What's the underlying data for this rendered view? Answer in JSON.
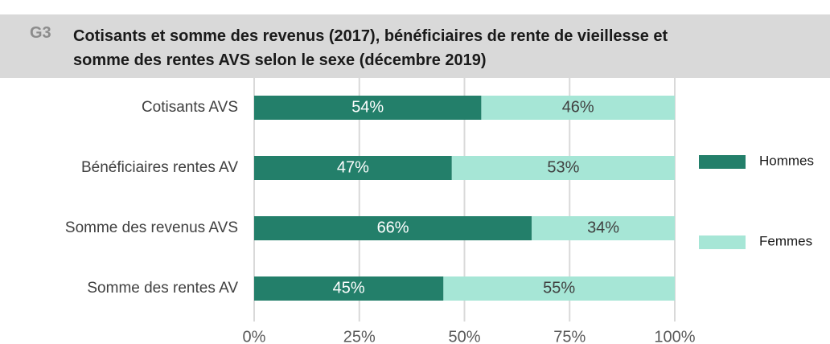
{
  "chart_data": {
    "type": "stacked_barh",
    "label": "G3",
    "title": [
      "Cotisants et somme des revenus (2017), bénéficiaires de rente de vieillesse et",
      "somme des rentes AVS selon le sexe (décembre 2019)"
    ],
    "categories": [
      "Cotisants AVS",
      "Bénéficiaires rentes AV",
      "Somme des revenus AVS",
      "Somme des rentes AV"
    ],
    "series": [
      {
        "name": "Hommes",
        "color": "#237f6a",
        "values": [
          54,
          47,
          66,
          45
        ],
        "value_labels": [
          "54%",
          "47%",
          "66%",
          "45%"
        ]
      },
      {
        "name": "Femmes",
        "color": "#a6e6d6",
        "values": [
          46,
          53,
          34,
          55
        ],
        "value_labels": [
          "46%",
          "53%",
          "34%",
          "55%"
        ]
      }
    ],
    "xlim": [
      0,
      100
    ],
    "xticks": [
      {
        "value": 0,
        "label": "0%"
      },
      {
        "value": 25,
        "label": "25%"
      },
      {
        "value": 50,
        "label": "50%"
      },
      {
        "value": 75,
        "label": "75%"
      },
      {
        "value": 100,
        "label": "100%"
      }
    ],
    "grid": true,
    "legend": "right"
  }
}
